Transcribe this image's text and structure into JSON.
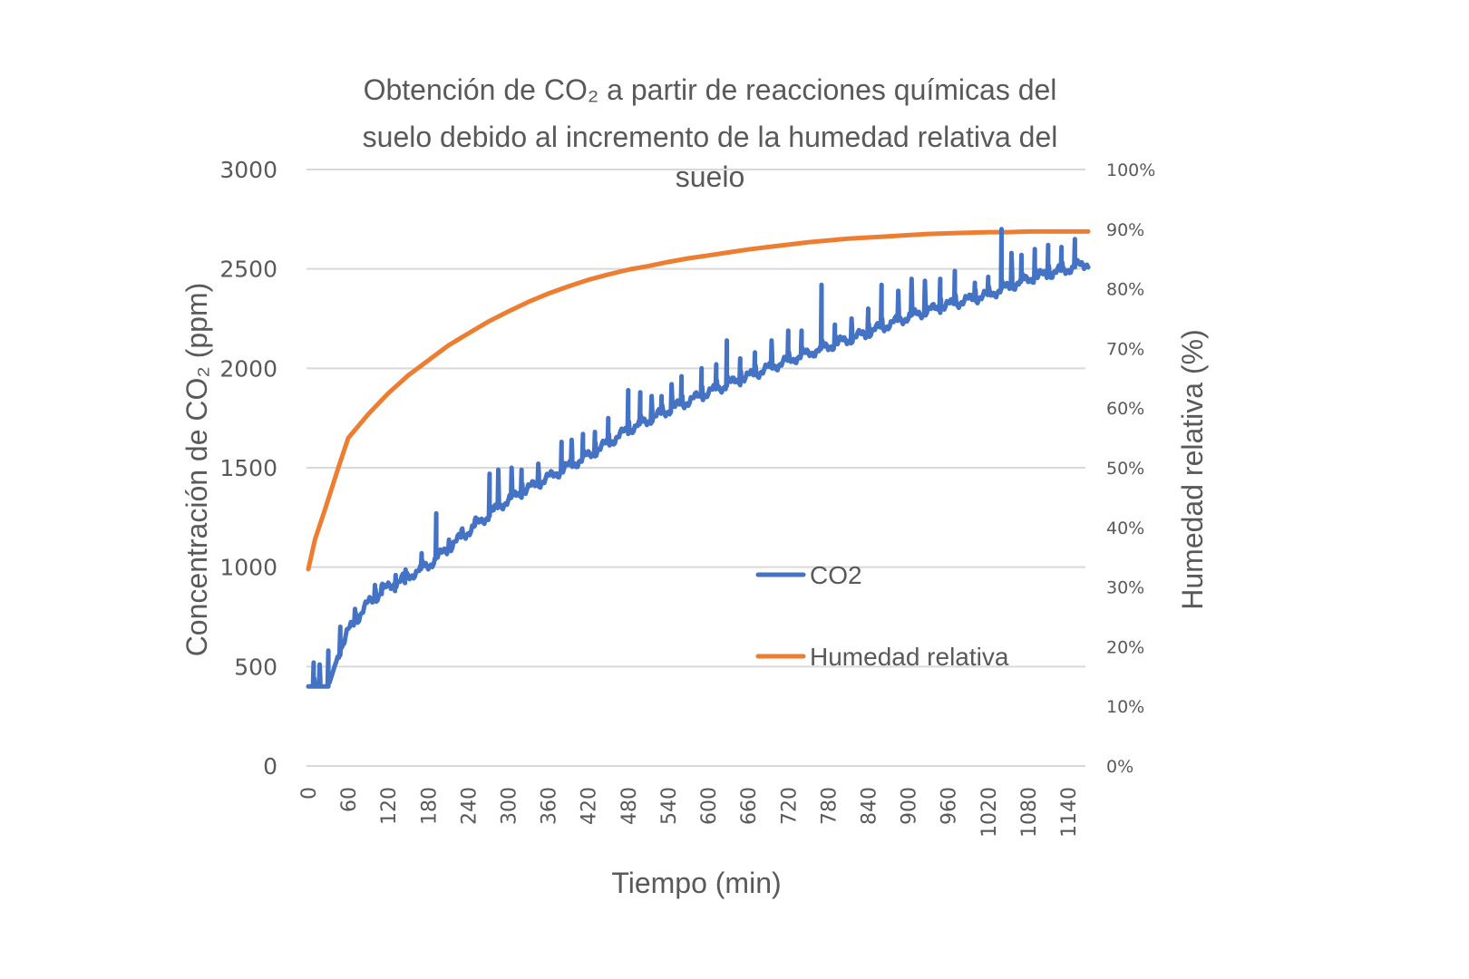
{
  "chart_data": {
    "type": "line",
    "title": "Obtención de CO₂ a partir de reacciones químicas del suelo debido al incremento de la humedad relativa del suelo",
    "title_lines": [
      "Obtención de CO₂ a partir de reacciones químicas del",
      "suelo debido al incremento de la humedad relativa del",
      "suelo"
    ],
    "xlabel": "Tiempo (min)",
    "ylabel": "Concentración de CO₂ (ppm)",
    "y2label": "Humedad relativa (%)",
    "xlim": [
      0,
      1170
    ],
    "ylim": [
      0,
      3000
    ],
    "y2lim": [
      0,
      100
    ],
    "x_ticks": [
      "0",
      "60",
      "120",
      "180",
      "240",
      "300",
      "360",
      "420",
      "480",
      "540",
      "600",
      "660",
      "720",
      "780",
      "840",
      "900",
      "960",
      "1020",
      "1080",
      "1140"
    ],
    "y_ticks": [
      "0",
      "500",
      "1000",
      "1500",
      "2000",
      "2500",
      "3000"
    ],
    "y2_ticks": [
      "0%",
      "10%",
      "20%",
      "30%",
      "40%",
      "50%",
      "60%",
      "70%",
      "80%",
      "90%",
      "100%"
    ],
    "grid": true,
    "legend_position": "center-right-inside",
    "series": [
      {
        "name": "CO2",
        "axis": "left",
        "color": "#4472C4",
        "baseline_points": [
          [
            0,
            400
          ],
          [
            30,
            400
          ],
          [
            45,
            560
          ],
          [
            60,
            680
          ],
          [
            90,
            820
          ],
          [
            120,
            900
          ],
          [
            180,
            1010
          ],
          [
            240,
            1180
          ],
          [
            300,
            1340
          ],
          [
            360,
            1450
          ],
          [
            420,
            1560
          ],
          [
            480,
            1690
          ],
          [
            540,
            1790
          ],
          [
            600,
            1880
          ],
          [
            660,
            1960
          ],
          [
            720,
            2040
          ],
          [
            780,
            2110
          ],
          [
            840,
            2180
          ],
          [
            900,
            2260
          ],
          [
            960,
            2320
          ],
          [
            1020,
            2370
          ],
          [
            1080,
            2450
          ],
          [
            1140,
            2500
          ],
          [
            1170,
            2530
          ]
        ],
        "spikes": [
          [
            8,
            520
          ],
          [
            17,
            510
          ],
          [
            30,
            580
          ],
          [
            48,
            700
          ],
          [
            70,
            790
          ],
          [
            100,
            910
          ],
          [
            110,
            910
          ],
          [
            130,
            880
          ],
          [
            145,
            920
          ],
          [
            170,
            1070
          ],
          [
            192,
            1270
          ],
          [
            210,
            1100
          ],
          [
            230,
            1190
          ],
          [
            250,
            1240
          ],
          [
            272,
            1470
          ],
          [
            285,
            1490
          ],
          [
            305,
            1500
          ],
          [
            320,
            1490
          ],
          [
            345,
            1520
          ],
          [
            380,
            1630
          ],
          [
            395,
            1640
          ],
          [
            412,
            1670
          ],
          [
            430,
            1680
          ],
          [
            450,
            1750
          ],
          [
            480,
            1890
          ],
          [
            498,
            1880
          ],
          [
            515,
            1860
          ],
          [
            530,
            1860
          ],
          [
            545,
            1920
          ],
          [
            560,
            1960
          ],
          [
            590,
            2000
          ],
          [
            612,
            2020
          ],
          [
            628,
            2140
          ],
          [
            648,
            2050
          ],
          [
            670,
            2080
          ],
          [
            695,
            2140
          ],
          [
            720,
            2190
          ],
          [
            740,
            2190
          ],
          [
            770,
            2420
          ],
          [
            790,
            2220
          ],
          [
            815,
            2250
          ],
          [
            840,
            2300
          ],
          [
            860,
            2420
          ],
          [
            885,
            2390
          ],
          [
            905,
            2450
          ],
          [
            925,
            2440
          ],
          [
            948,
            2450
          ],
          [
            970,
            2490
          ],
          [
            1000,
            2430
          ],
          [
            1020,
            2460
          ],
          [
            1040,
            2700
          ],
          [
            1055,
            2580
          ],
          [
            1070,
            2570
          ],
          [
            1090,
            2600
          ],
          [
            1110,
            2620
          ],
          [
            1130,
            2610
          ],
          [
            1150,
            2650
          ]
        ]
      },
      {
        "name": "Humedad relativa",
        "axis": "right",
        "color": "#ED7D31",
        "points": [
          [
            0,
            33
          ],
          [
            10,
            38
          ],
          [
            25,
            43
          ],
          [
            45,
            50
          ],
          [
            60,
            55
          ],
          [
            90,
            59
          ],
          [
            120,
            62.5
          ],
          [
            150,
            65.5
          ],
          [
            180,
            68
          ],
          [
            210,
            70.5
          ],
          [
            240,
            72.5
          ],
          [
            270,
            74.5
          ],
          [
            300,
            76.2
          ],
          [
            330,
            77.8
          ],
          [
            360,
            79.2
          ],
          [
            390,
            80.4
          ],
          [
            420,
            81.5
          ],
          [
            450,
            82.4
          ],
          [
            480,
            83.2
          ],
          [
            510,
            83.8
          ],
          [
            540,
            84.5
          ],
          [
            570,
            85.1
          ],
          [
            600,
            85.6
          ],
          [
            630,
            86.1
          ],
          [
            660,
            86.6
          ],
          [
            690,
            87
          ],
          [
            720,
            87.4
          ],
          [
            750,
            87.8
          ],
          [
            780,
            88.1
          ],
          [
            810,
            88.4
          ],
          [
            840,
            88.6
          ],
          [
            870,
            88.8
          ],
          [
            900,
            89
          ],
          [
            930,
            89.2
          ],
          [
            960,
            89.3
          ],
          [
            990,
            89.4
          ],
          [
            1020,
            89.5
          ],
          [
            1050,
            89.5
          ],
          [
            1080,
            89.6
          ],
          [
            1110,
            89.6
          ],
          [
            1140,
            89.6
          ],
          [
            1170,
            89.6
          ]
        ]
      }
    ]
  }
}
